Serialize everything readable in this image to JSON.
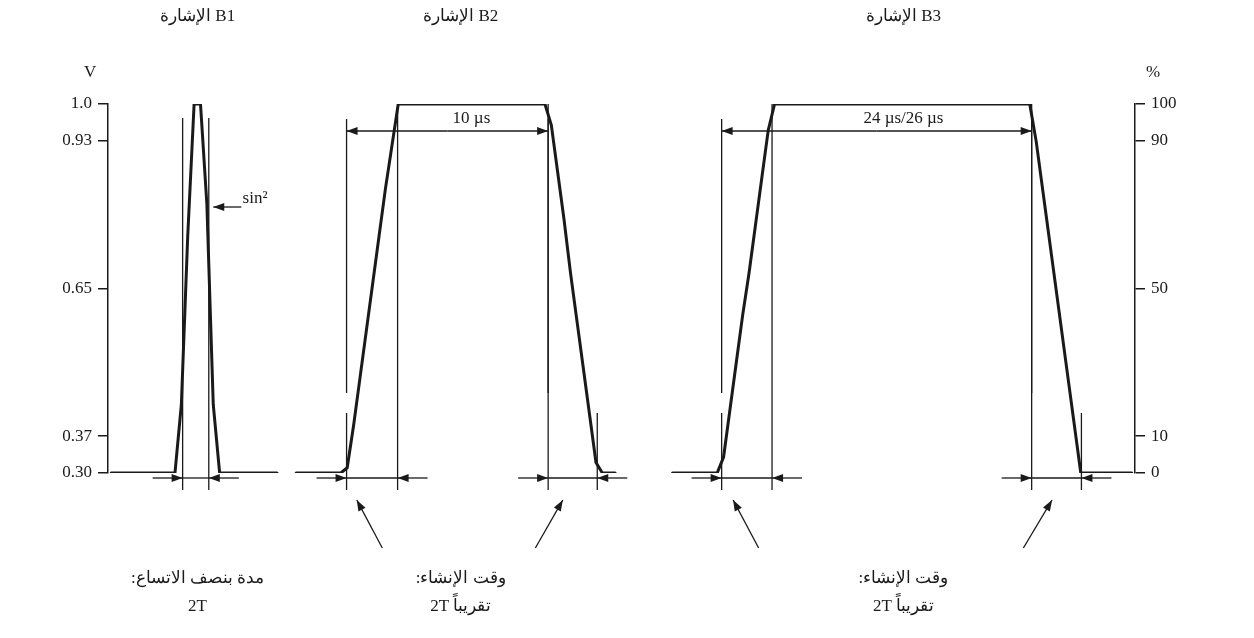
{
  "chart_data": {
    "type": "line",
    "ylabel": "V",
    "y2label": "%",
    "annotations": [
      "الإشارة B1",
      "الإشارة B2",
      "الإشارة B3",
      "10 µs",
      "24 µs/26 µs",
      "sin²",
      "مدة بنصف الاتساع:",
      "2T",
      "وقت الإنشاء:",
      "2T تقريباً",
      "وقت الإنشاء:",
      "2T تقريباً"
    ],
    "categories": [
      null,
      null,
      null,
      null,
      null,
      null,
      null,
      null,
      null,
      null,
      null,
      null,
      null,
      null,
      null,
      null,
      null,
      null,
      null,
      null,
      null,
      null,
      null,
      null,
      null,
      null,
      null,
      null,
      null,
      null,
      null,
      null,
      null,
      null,
      null,
      null,
      null,
      null,
      null,
      null,
      null,
      null,
      null,
      null,
      null,
      null,
      null,
      null,
      null,
      null,
      null,
      null,
      null,
      null,
      null,
      null,
      null,
      null,
      null,
      null,
      null,
      null,
      null,
      null,
      null,
      null,
      null,
      null,
      null,
      null,
      null,
      null,
      null,
      null,
      null,
      null,
      null,
      null,
      null,
      null,
      null,
      null,
      null,
      null,
      null,
      null,
      null,
      null,
      null,
      null,
      null,
      null,
      null,
      null,
      null,
      null,
      null,
      null,
      null,
      null,
      null,
      null,
      null,
      null,
      null,
      null,
      null,
      null,
      null,
      null,
      null,
      null,
      null,
      null,
      null,
      null,
      null,
      null,
      null,
      null,
      null,
      null,
      null,
      null,
      null,
      null,
      null,
      null,
      null,
      null,
      null,
      null,
      null,
      null,
      null,
      null,
      null,
      null,
      null,
      null,
      null,
      null,
      null,
      null,
      null,
      null,
      null,
      null,
      null,
      null,
      null,
      null,
      null,
      null,
      null,
      null,
      null,
      null,
      null,
      null,
      null
    ],
    "series": [
      {
        "color": "#1a1a1a",
        "values": [
          0.3,
          0.3,
          0.3,
          0.3,
          0.3,
          0.3,
          0.3,
          0.3,
          0.3,
          0.3,
          0.3,
          0.43,
          0.75,
          1.0,
          1.0,
          0.81,
          0.43,
          0.3,
          0.3,
          0.3,
          0.3,
          0.3,
          0.3,
          0.3,
          0.3,
          0.3,
          0.3,
          null,
          null,
          null,
          null,
          null,
          null,
          null,
          null,
          null,
          null,
          null,
          null,
          null,
          null,
          null,
          null,
          null,
          null,
          null,
          null,
          null,
          null,
          null,
          null,
          null,
          null,
          null,
          null,
          null,
          null,
          null,
          null,
          null,
          null,
          null,
          null,
          null,
          null,
          null,
          null,
          null,
          null,
          null,
          null,
          null,
          null,
          null,
          null,
          null,
          null,
          null,
          null,
          null,
          null,
          null,
          null,
          null,
          null,
          null,
          null,
          null,
          null,
          null,
          null,
          null,
          null,
          null,
          null,
          null,
          null,
          null,
          null,
          null,
          null,
          null,
          null,
          null,
          null,
          null,
          null,
          null,
          null,
          null,
          null,
          null,
          null,
          null,
          null,
          null,
          null,
          null,
          null,
          null,
          null,
          null,
          null,
          null,
          null,
          null,
          null,
          null,
          null,
          null,
          null,
          null,
          null,
          null,
          null,
          null,
          null,
          null,
          null,
          null,
          null,
          null,
          null,
          null,
          null,
          null,
          null,
          null,
          null,
          null,
          null,
          null,
          null,
          null,
          null,
          null,
          null,
          null,
          null,
          null,
          null
        ]
      },
      {
        "color": "#1a1a1a",
        "values": [
          null,
          null,
          null,
          null,
          null,
          null,
          null,
          null,
          null,
          null,
          null,
          null,
          null,
          null,
          null,
          null,
          null,
          null,
          null,
          null,
          null,
          null,
          null,
          null,
          null,
          null,
          null,
          null,
          null,
          0.3,
          0.3,
          0.3,
          0.3,
          0.3,
          0.3,
          0.3,
          0.3,
          0.31,
          0.39,
          0.48,
          0.57,
          0.66,
          0.75,
          0.84,
          0.92,
          1.0,
          1.0,
          1.0,
          1.0,
          1.0,
          1.0,
          1.0,
          1.0,
          1.0,
          1.0,
          1.0,
          1.0,
          1.0,
          1.0,
          1.0,
          1.0,
          1.0,
          1.0,
          1.0,
          1.0,
          1.0,
          1.0,
          1.0,
          1.0,
          0.96,
          0.87,
          0.78,
          0.68,
          0.59,
          0.5,
          0.41,
          0.32,
          0.3,
          0.3,
          0.3,
          null,
          null,
          null,
          null,
          null,
          null,
          null,
          null,
          null,
          null,
          null,
          null,
          null,
          null,
          null,
          null,
          null,
          null,
          null,
          null,
          null,
          null,
          null,
          null,
          null,
          null,
          null,
          null,
          null,
          null,
          null,
          null,
          null,
          null,
          null,
          null,
          null,
          null,
          null,
          null,
          null,
          null,
          null,
          null,
          null,
          null,
          null,
          null,
          null,
          null,
          null,
          null,
          null,
          null,
          null,
          null,
          null,
          null,
          null,
          null,
          null,
          null,
          null,
          null,
          null,
          null,
          null,
          null,
          null,
          null,
          null,
          null,
          null,
          null,
          null,
          null,
          null,
          null,
          null,
          null,
          null
        ]
      },
      {
        "color": "#1a1a1a",
        "values": [
          null,
          null,
          null,
          null,
          null,
          null,
          null,
          null,
          null,
          null,
          null,
          null,
          null,
          null,
          null,
          null,
          null,
          null,
          null,
          null,
          null,
          null,
          null,
          null,
          null,
          null,
          null,
          null,
          null,
          null,
          null,
          null,
          null,
          null,
          null,
          null,
          null,
          null,
          null,
          null,
          null,
          null,
          null,
          null,
          null,
          null,
          null,
          null,
          null,
          null,
          null,
          null,
          null,
          null,
          null,
          null,
          null,
          null,
          null,
          null,
          null,
          null,
          null,
          null,
          null,
          null,
          null,
          null,
          null,
          null,
          null,
          null,
          null,
          null,
          null,
          null,
          null,
          null,
          null,
          null,
          null,
          null,
          null,
          null,
          null,
          null,
          null,
          null,
          0.3,
          0.3,
          0.3,
          0.3,
          0.3,
          0.3,
          0.3,
          0.3,
          0.33,
          0.42,
          0.51,
          0.6,
          0.68,
          0.77,
          0.86,
          0.95,
          1.0,
          1.0,
          1.0,
          1.0,
          1.0,
          1.0,
          1.0,
          1.0,
          1.0,
          1.0,
          1.0,
          1.0,
          1.0,
          1.0,
          1.0,
          1.0,
          1.0,
          1.0,
          1.0,
          1.0,
          1.0,
          1.0,
          1.0,
          1.0,
          1.0,
          1.0,
          1.0,
          1.0,
          1.0,
          1.0,
          1.0,
          1.0,
          1.0,
          1.0,
          1.0,
          1.0,
          1.0,
          1.0,
          1.0,
          1.0,
          1.0,
          0.93,
          0.84,
          0.75,
          0.66,
          0.57,
          0.48,
          0.39,
          0.3,
          0.3,
          0.3,
          0.3,
          0.3,
          0.3,
          0.3,
          0.3,
          0.3
        ]
      }
    ],
    "ylim": [
      0.3,
      1.0
    ],
    "yticks": [
      {
        "value": 0.3,
        "label": "0.30"
      },
      0.37,
      0.65,
      0.93,
      {
        "value": 1.0,
        "label": "1.0"
      }
    ],
    "y2lim": [
      0,
      100
    ],
    "y2ticks": [
      0,
      10,
      50,
      90,
      100
    ],
    "tick_labels": "y",
    "marker": "none"
  }
}
